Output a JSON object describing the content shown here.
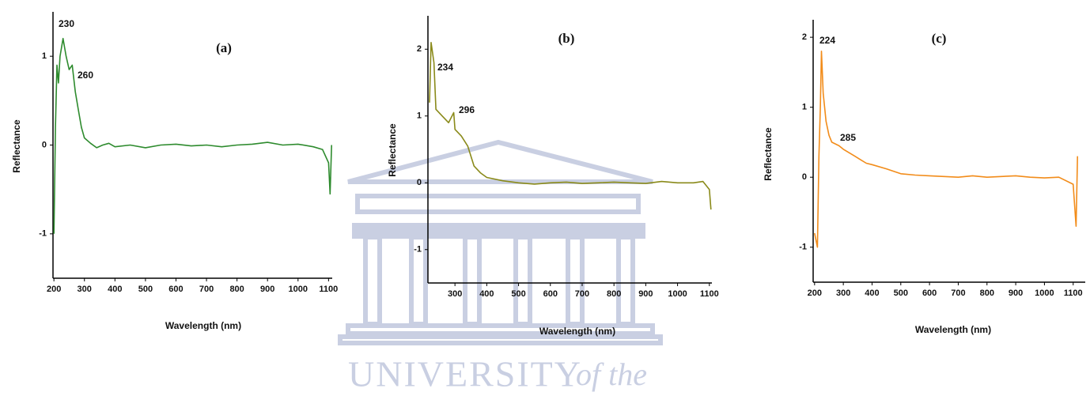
{
  "chart_data": [
    {
      "type": "line",
      "title": "(a)",
      "xlabel": "Wavelength (nm)",
      "ylabel": "Reflectance",
      "annotations": [
        "230",
        "260"
      ],
      "x": [
        200,
        205,
        210,
        215,
        220,
        230,
        240,
        250,
        260,
        270,
        280,
        290,
        300,
        320,
        340,
        360,
        380,
        400,
        450,
        500,
        550,
        600,
        650,
        700,
        750,
        800,
        850,
        900,
        950,
        1000,
        1050,
        1080,
        1100,
        1105,
        1110
      ],
      "series": [
        {
          "name": "(a)",
          "color": "#2e8b2e",
          "values": [
            -1.0,
            0.2,
            0.9,
            0.7,
            1.0,
            1.2,
            1.0,
            0.85,
            0.9,
            0.6,
            0.4,
            0.2,
            0.08,
            0.02,
            -0.03,
            0.0,
            0.02,
            -0.02,
            0.0,
            -0.03,
            0.0,
            0.01,
            -0.01,
            0.0,
            -0.02,
            0.0,
            0.01,
            0.03,
            0.0,
            0.01,
            -0.02,
            -0.05,
            -0.2,
            -0.55,
            0.0
          ]
        }
      ],
      "xlim": [
        197,
        1112
      ],
      "ylim": [
        -1.5,
        1.5
      ],
      "xticks": [
        200,
        300,
        400,
        500,
        600,
        700,
        800,
        900,
        1000,
        1100
      ],
      "yticks": [
        -1,
        0,
        1
      ]
    },
    {
      "type": "line",
      "title": "(b)",
      "xlabel": "Wavelength (nm)",
      "ylabel": "Reflectance",
      "annotations": [
        "234",
        "296"
      ],
      "x": [
        220,
        225,
        234,
        240,
        260,
        280,
        296,
        300,
        320,
        340,
        360,
        380,
        400,
        450,
        500,
        550,
        600,
        650,
        700,
        750,
        800,
        850,
        900,
        950,
        1000,
        1050,
        1080,
        1100,
        1105
      ],
      "series": [
        {
          "name": "(b)",
          "color": "#8a8a1a",
          "values": [
            1.2,
            2.1,
            1.8,
            1.1,
            1.0,
            0.9,
            1.05,
            0.8,
            0.7,
            0.55,
            0.25,
            0.15,
            0.08,
            0.03,
            0.0,
            -0.02,
            0.0,
            0.01,
            -0.01,
            0.0,
            0.01,
            0.0,
            -0.01,
            0.02,
            0.0,
            0.0,
            0.02,
            -0.1,
            -0.4
          ]
        }
      ],
      "xlim": [
        215,
        1108
      ],
      "ylim": [
        -1.5,
        2.5
      ],
      "xticks": [
        300,
        400,
        500,
        600,
        700,
        800,
        900,
        1000,
        1100
      ],
      "yticks": [
        -1,
        0,
        1,
        2
      ]
    },
    {
      "type": "line",
      "title": "(c)",
      "xlabel": "Wavelength (nm)",
      "ylabel": "Reflectance",
      "annotations": [
        "224",
        "285"
      ],
      "x": [
        200,
        210,
        215,
        220,
        224,
        230,
        240,
        250,
        260,
        285,
        300,
        320,
        340,
        360,
        380,
        400,
        450,
        500,
        550,
        600,
        650,
        700,
        750,
        800,
        850,
        900,
        950,
        1000,
        1050,
        1100,
        1110,
        1115
      ],
      "series": [
        {
          "name": "(c)",
          "color": "#f28c1a",
          "values": [
            -0.8,
            -1.0,
            0.3,
            1.0,
            1.8,
            1.2,
            0.8,
            0.6,
            0.5,
            0.45,
            0.4,
            0.35,
            0.3,
            0.25,
            0.2,
            0.18,
            0.12,
            0.05,
            0.03,
            0.02,
            0.01,
            0.0,
            0.02,
            0.0,
            0.01,
            0.02,
            0.0,
            -0.01,
            0.0,
            -0.1,
            -0.7,
            0.3
          ]
        }
      ],
      "xlim": [
        195,
        1142
      ],
      "ylim": [
        -1.5,
        2.25
      ],
      "xticks": [
        200,
        300,
        400,
        500,
        600,
        700,
        800,
        900,
        1000,
        1100
      ],
      "yticks": [
        -1,
        0,
        1,
        2
      ]
    }
  ],
  "watermark": [
    "UNIVERSITY",
    "of the"
  ]
}
